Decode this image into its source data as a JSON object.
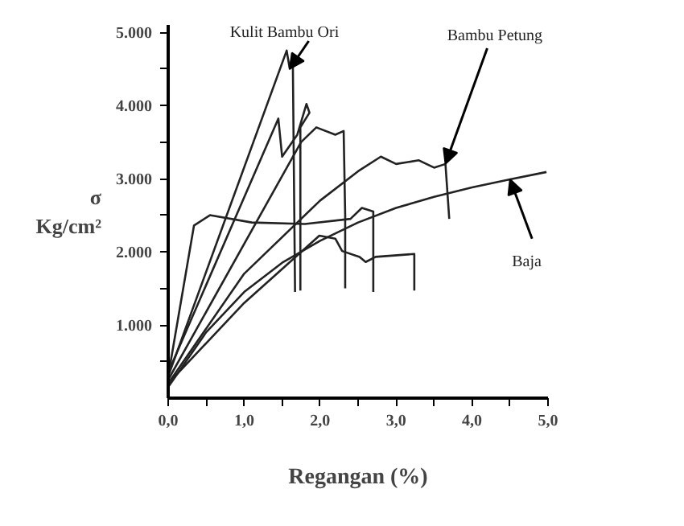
{
  "chart_data": {
    "type": "line",
    "xlabel": "Regangan (%)",
    "ylabel": "σ\nKg/cm²",
    "xlim": [
      0,
      5.0
    ],
    "ylim": [
      0,
      5100
    ],
    "xticks": [
      {
        "value": 0,
        "label": "0,0"
      },
      {
        "value": 0.5,
        "label": null
      },
      {
        "value": 1,
        "label": "1,0"
      },
      {
        "value": 1.5,
        "label": null
      },
      {
        "value": 2,
        "label": "2,0"
      },
      {
        "value": 2.5,
        "label": null
      },
      {
        "value": 3,
        "label": "3,0"
      },
      {
        "value": 3.5,
        "label": null
      },
      {
        "value": 4,
        "label": "4,0"
      },
      {
        "value": 4.5,
        "label": null
      },
      {
        "value": 5,
        "label": "5,0"
      }
    ],
    "yticks": [
      {
        "value": 500,
        "label": null
      },
      {
        "value": 1000,
        "label": "1.000"
      },
      {
        "value": 1500,
        "label": null
      },
      {
        "value": 2000,
        "label": "2.000"
      },
      {
        "value": 2500,
        "label": null
      },
      {
        "value": 3000,
        "label": "3.000"
      },
      {
        "value": 3500,
        "label": null
      },
      {
        "value": 4000,
        "label": "4.000"
      },
      {
        "value": 4500,
        "label": null
      },
      {
        "value": 5000,
        "label": "5.000"
      }
    ],
    "grid": false,
    "line_style": "solid",
    "series": [
      {
        "color": "#222222",
        "x": [
          0,
          1.56,
          1.6,
          1.64,
          1.67
        ],
        "values": [
          300,
          4750,
          4500,
          4700,
          1450
        ]
      },
      {
        "color": "#222222",
        "x": [
          0,
          1.45,
          1.5,
          1.7,
          1.82,
          1.86,
          1.74,
          1.74
        ],
        "values": [
          350,
          3820,
          3300,
          3600,
          4020,
          3900,
          3700,
          1470
        ]
      },
      {
        "color": "#222222",
        "x": [
          0,
          1.75,
          1.95,
          2.2,
          2.31,
          2.33,
          2.33
        ],
        "values": [
          250,
          3500,
          3700,
          3600,
          3650,
          2500,
          1500
        ]
      },
      {
        "color": "#222222",
        "x": [
          0,
          1.0,
          2.0,
          2.5,
          2.8,
          3.0,
          3.3,
          3.5,
          3.65,
          3.7
        ],
        "values": [
          200,
          1700,
          2700,
          3100,
          3300,
          3200,
          3250,
          3150,
          3200,
          2450
        ]
      },
      {
        "color": "#222222",
        "x": [
          0,
          0.34,
          0.55,
          1.1,
          1.8,
          2.4,
          2.55,
          2.7,
          2.7
        ],
        "values": [
          300,
          2360,
          2500,
          2400,
          2380,
          2450,
          2600,
          2550,
          1450
        ]
      },
      {
        "color": "#222222",
        "x": [
          0,
          1.0,
          1.99,
          2.2,
          2.29,
          2.52,
          2.6,
          2.73,
          3.24,
          3.24
        ],
        "values": [
          200,
          1300,
          2220,
          2180,
          2010,
          1930,
          1860,
          1930,
          1970,
          1470
        ]
      },
      {
        "color": "#222222",
        "x": [
          0,
          0.5,
          1.0,
          1.5,
          2.0,
          2.5,
          3.0,
          3.5,
          4.0,
          4.5,
          4.98
        ],
        "values": [
          150,
          900,
          1450,
          1850,
          2150,
          2400,
          2600,
          2750,
          2880,
          2990,
          3090
        ]
      }
    ],
    "annotations": [
      {
        "text": "Kulit Bambu Ori",
        "x": 1.6,
        "y": 4500
      },
      {
        "text": "Bambu Petung",
        "x": 3.65,
        "y": 3200
      },
      {
        "text": "Baja",
        "x": 4.5,
        "y": 2990
      }
    ]
  }
}
